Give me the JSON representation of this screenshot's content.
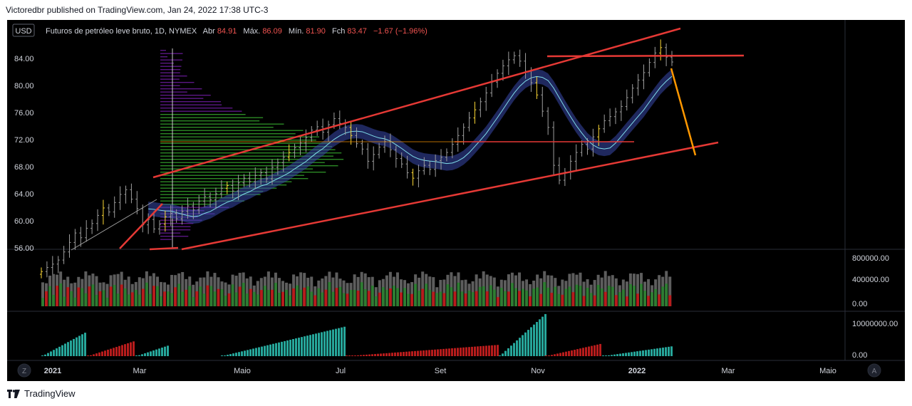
{
  "published": "Victoredbr published on TradingView.com, Jan 24, 2022 17:38 UTC-3",
  "header": {
    "currency": "USD",
    "symbol": "Futuros de petróleo leve bruto, 1D, NYMEX",
    "open_label": "Abr",
    "open": "84.91",
    "high_label": "Máx.",
    "high": "86.09",
    "low_label": "Mín.",
    "low": "81.90",
    "close_label": "Fch",
    "close": "83.47",
    "change": "−1.67 (−1.96%)"
  },
  "price_axis": [
    "84.00",
    "80.00",
    "76.00",
    "72.00",
    "68.00",
    "64.00",
    "60.00",
    "56.00"
  ],
  "volume_axis": [
    "800000.00",
    "400000.00",
    "0.00"
  ],
  "osc_axis": [
    "10000000.00",
    "0.00"
  ],
  "time_axis": [
    "2021",
    "Mar",
    "Maio",
    "Jul",
    "Set",
    "Nov",
    "2022",
    "Mar",
    "Maio"
  ],
  "time_bold": [
    true,
    false,
    false,
    false,
    false,
    false,
    true,
    false,
    false
  ],
  "buttons": {
    "left": "Z",
    "right": "A"
  },
  "footer_brand": "TradingView",
  "colors": {
    "up": "#2e7d32",
    "down": "#b71c1c",
    "grey": "#5d5d5d",
    "osc": "#26a69a",
    "trend": "#e53935",
    "orange": "#ff9800",
    "band": "#3949ab",
    "vp_green": "#33a02c",
    "vp_purple": "#6a1b9a"
  },
  "chart_data": {
    "type": "candlestick",
    "title": "Futuros de petróleo leve bruto, 1D, NYMEX",
    "ylim": [
      55,
      87
    ],
    "last_ohlc": {
      "open": 84.91,
      "high": 86.09,
      "low": 81.9,
      "close": 83.47
    },
    "closes": [
      52.5,
      53.1,
      53.6,
      54.2,
      55.4,
      56.8,
      58.2,
      57.5,
      58.9,
      59.6,
      60.8,
      61.9,
      61.3,
      62.7,
      63.9,
      64.6,
      63.2,
      61.8,
      59.4,
      60.2,
      58.8,
      59.5,
      60.6,
      61.1,
      60.3,
      61.4,
      62.2,
      61.6,
      62.9,
      63.6,
      63.1,
      64.0,
      64.8,
      65.2,
      64.4,
      65.6,
      66.3,
      65.8,
      66.7,
      67.1,
      66.2,
      67.9,
      68.6,
      69.4,
      70.1,
      70.8,
      71.5,
      72.3,
      73.4,
      73.9,
      73.1,
      74.2,
      75.1,
      74.4,
      73.8,
      72.6,
      71.4,
      70.6,
      68.8,
      69.8,
      70.9,
      71.7,
      70.5,
      69.2,
      68.4,
      67.1,
      66.3,
      67.4,
      68.2,
      67.6,
      68.9,
      69.4,
      70.1,
      71.3,
      72.6,
      73.8,
      75.2,
      76.4,
      77.6,
      78.9,
      80.5,
      81.8,
      82.9,
      83.8,
      84.4,
      83.6,
      82.1,
      80.4,
      78.6,
      76.2,
      73.8,
      68.2,
      66.0,
      67.2,
      68.8,
      70.1,
      71.3,
      70.6,
      72.4,
      73.6,
      74.8,
      75.4,
      76.1,
      76.9,
      78.2,
      79.6,
      80.8,
      81.9,
      83.4,
      84.8,
      85.6,
      84.2,
      83.47
    ],
    "volume_ylim": [
      0,
      900000
    ],
    "oscillator_ylim": [
      0,
      11000000
    ]
  }
}
